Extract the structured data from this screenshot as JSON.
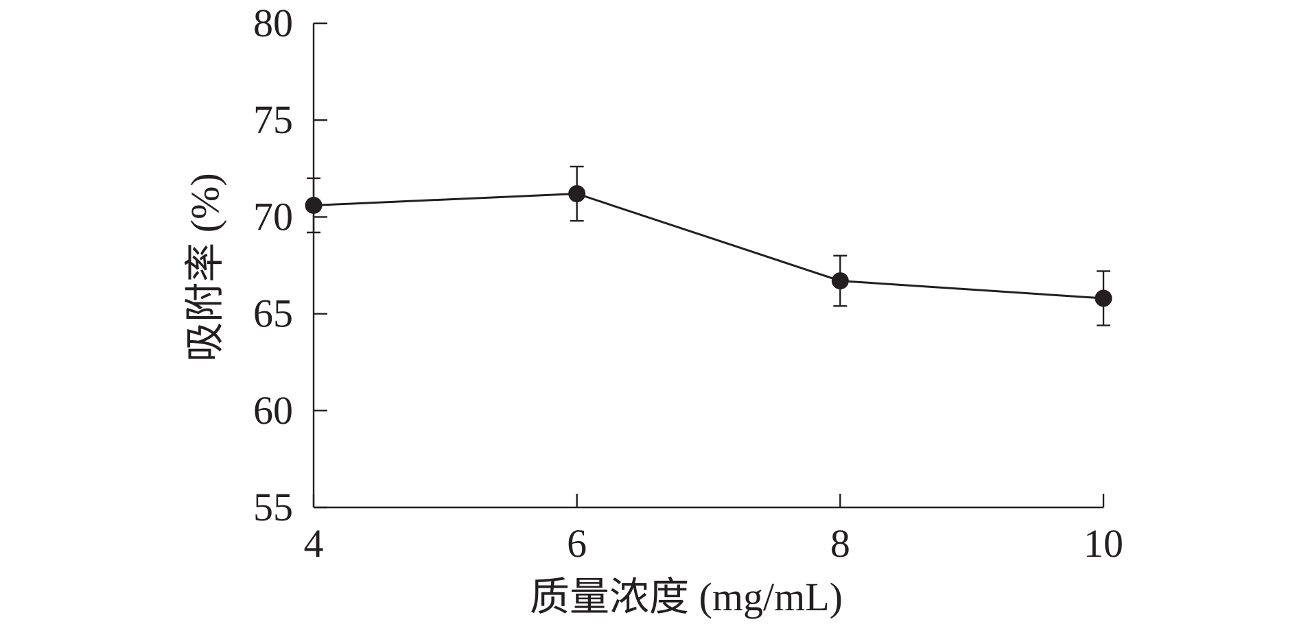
{
  "chart_data": {
    "type": "line",
    "x": [
      4,
      6,
      8,
      10
    ],
    "series": [
      {
        "values": [
          70.6,
          71.2,
          66.7,
          65.8
        ],
        "errors": [
          1.4,
          1.4,
          1.3,
          1.4
        ]
      }
    ],
    "xlabel": "质量浓度 (mg/mL)",
    "ylabel": "吸附率 (%)",
    "xlim": [
      4,
      10
    ],
    "ylim": [
      55,
      80
    ],
    "xticks": [
      "4",
      "6",
      "8",
      "10"
    ],
    "yticks": [
      "55",
      "60",
      "65",
      "70",
      "75",
      "80"
    ],
    "xtick_values": [
      4,
      6,
      8,
      10
    ],
    "ytick_values": [
      55,
      60,
      65,
      70,
      75,
      80
    ],
    "grid": false,
    "legend": "none",
    "colors": {
      "ink": "#231f20",
      "background": "#ffffff"
    }
  }
}
